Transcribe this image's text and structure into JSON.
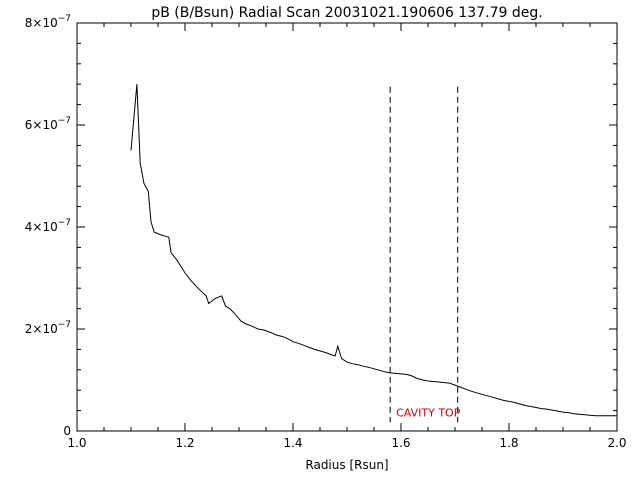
{
  "chart_data": {
    "type": "line",
    "title": "pB (B/Bsun) Radial Scan 20031021.190606 137.79 deg.",
    "xlabel": "Radius [Rsun]",
    "ylabel": "",
    "xlim": [
      1.0,
      2.0
    ],
    "ylim": [
      0,
      8e-07
    ],
    "x_ticks": [
      {
        "value": 1.0,
        "label": "1.0"
      },
      {
        "value": 1.2,
        "label": "1.2"
      },
      {
        "value": 1.4,
        "label": "1.4"
      },
      {
        "value": 1.6,
        "label": "1.6"
      },
      {
        "value": 1.8,
        "label": "1.8"
      },
      {
        "value": 2.0,
        "label": "2.0"
      }
    ],
    "y_ticks": [
      {
        "value": 0,
        "label": "0",
        "exp": ""
      },
      {
        "value": 2e-07,
        "label": "2×10",
        "exp": "−7"
      },
      {
        "value": 4e-07,
        "label": "4×10",
        "exp": "−7"
      },
      {
        "value": 6e-07,
        "label": "6×10",
        "exp": "−7"
      },
      {
        "value": 8e-07,
        "label": "8×10",
        "exp": "−7"
      }
    ],
    "grid": false,
    "series": [
      {
        "x": [
          1.1,
          1.111,
          1.117,
          1.124,
          1.132,
          1.137,
          1.143,
          1.154,
          1.17,
          1.174,
          1.185,
          1.2,
          1.211,
          1.224,
          1.239,
          1.244,
          1.256,
          1.268,
          1.275,
          1.283,
          1.292,
          1.304,
          1.313,
          1.325,
          1.335,
          1.346,
          1.359,
          1.37,
          1.381,
          1.392,
          1.4,
          1.41,
          1.42,
          1.43,
          1.44,
          1.45,
          1.46,
          1.47,
          1.478,
          1.483,
          1.49,
          1.5,
          1.51,
          1.52,
          1.53,
          1.54,
          1.55,
          1.56,
          1.57,
          1.58,
          1.59,
          1.6,
          1.61,
          1.62,
          1.63,
          1.64,
          1.65,
          1.66,
          1.67,
          1.68,
          1.69,
          1.7,
          1.71,
          1.72,
          1.73,
          1.74,
          1.75,
          1.76,
          1.77,
          1.78,
          1.79,
          1.8,
          1.81,
          1.82,
          1.83,
          1.84,
          1.85,
          1.86,
          1.87,
          1.88,
          1.89,
          1.9,
          1.91,
          1.92,
          1.93,
          1.94,
          1.95,
          1.96,
          1.97,
          1.98,
          1.99,
          2.0
        ],
        "values": [
          5.5e-07,
          6.8e-07,
          5.25e-07,
          4.85e-07,
          4.7e-07,
          4.1e-07,
          3.9e-07,
          3.85e-07,
          3.8e-07,
          3.5e-07,
          3.35e-07,
          3.1e-07,
          2.95e-07,
          2.8e-07,
          2.65e-07,
          2.5e-07,
          2.6e-07,
          2.65e-07,
          2.45e-07,
          2.4e-07,
          2.3e-07,
          2.15e-07,
          2.1e-07,
          2.05e-07,
          2e-07,
          1.98e-07,
          1.93e-07,
          1.88e-07,
          1.85e-07,
          1.8e-07,
          1.75e-07,
          1.72e-07,
          1.68e-07,
          1.64e-07,
          1.6e-07,
          1.57e-07,
          1.54e-07,
          1.5e-07,
          1.47e-07,
          1.66e-07,
          1.42e-07,
          1.35e-07,
          1.32e-07,
          1.3e-07,
          1.27e-07,
          1.25e-07,
          1.22e-07,
          1.19e-07,
          1.16e-07,
          1.14e-07,
          1.13e-07,
          1.12e-07,
          1.11e-07,
          1.08e-07,
          1.03e-07,
          1e-07,
          9.8e-08,
          9.7e-08,
          9.6e-08,
          9.5e-08,
          9.4e-08,
          9e-08,
          8.6e-08,
          8.2e-08,
          7.8e-08,
          7.5e-08,
          7.2e-08,
          6.9e-08,
          6.6e-08,
          6.3e-08,
          6e-08,
          5.8e-08,
          5.6e-08,
          5.3e-08,
          5e-08,
          4.8e-08,
          4.6e-08,
          4.4e-08,
          4.3e-08,
          4.1e-08,
          3.9e-08,
          3.7e-08,
          3.6e-08,
          3.4e-08,
          3.3e-08,
          3.2e-08,
          3.1e-08,
          3e-08,
          3e-08,
          3e-08,
          3e-08,
          3e-08
        ]
      }
    ],
    "markers": [
      {
        "x": 1.58,
        "ymin": 1.7e-08,
        "ymax": 6.75e-07
      },
      {
        "x": 1.705,
        "ymin": 1.7e-08,
        "ymax": 6.75e-07
      }
    ],
    "annotations": [
      {
        "text": "CAVITY TOP",
        "x": 1.591,
        "y": 2.8e-08,
        "color": "#cc0000"
      }
    ]
  }
}
